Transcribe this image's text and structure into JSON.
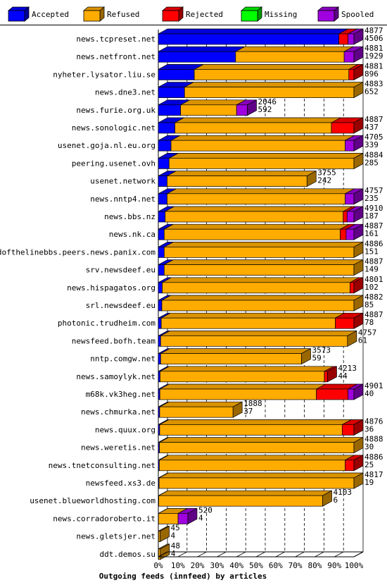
{
  "chart_data": {
    "type": "bar",
    "stacked": true,
    "orientation": "horizontal",
    "style": "3d",
    "xlabel": "Outgoing feeds (innfeed) by articles",
    "x_ticks": [
      "0%",
      "10%",
      "20%",
      "30%",
      "40%",
      "50%",
      "60%",
      "70%",
      "80%",
      "90%",
      "100%"
    ],
    "xlim": [
      0,
      100
    ],
    "grid": true,
    "legend_position": "top",
    "legend": [
      {
        "name": "Accepted",
        "color": "#0000ff"
      },
      {
        "name": "Refused",
        "color": "#ffac00"
      },
      {
        "name": "Rejected",
        "color": "#ff0000"
      },
      {
        "name": "Missing",
        "color": "#00ff00"
      },
      {
        "name": "Spooled",
        "color": "#a000e0"
      }
    ],
    "rows": [
      {
        "label": "news.tcpreset.net",
        "total": "4877",
        "accepted": "4506",
        "segments": [
          92.3,
          0,
          4.7,
          0,
          3.0
        ]
      },
      {
        "label": "news.netfront.net",
        "total": "4881",
        "accepted": "1929",
        "segments": [
          39.5,
          55.5,
          0,
          0,
          5.0
        ]
      },
      {
        "label": "nyheter.lysator.liu.se",
        "total": "4881",
        "accepted": "896",
        "segments": [
          18.4,
          79.0,
          2.6,
          0,
          0
        ]
      },
      {
        "label": "news.dne3.net",
        "total": "4883",
        "accepted": "652",
        "segments": [
          13.4,
          86.6,
          0,
          0,
          0
        ]
      },
      {
        "label": "news.furie.org.uk",
        "total": "2046",
        "accepted": "592",
        "segments": [
          11.4,
          28.6,
          0,
          0,
          5.5
        ]
      },
      {
        "label": "news.sonologic.net",
        "total": "4887",
        "accepted": "437",
        "segments": [
          8.5,
          80.0,
          11.5,
          0,
          0
        ]
      },
      {
        "label": "usenet.goja.nl.eu.org",
        "total": "4705",
        "accepted": "339",
        "segments": [
          6.5,
          89.0,
          0,
          0,
          4.5
        ]
      },
      {
        "label": "peering.usenet.ovh",
        "total": "4884",
        "accepted": "285",
        "segments": [
          5.5,
          94.5,
          0,
          0,
          0
        ]
      },
      {
        "label": "usenet.network",
        "total": "3755",
        "accepted": "242",
        "segments": [
          4.5,
          71.5,
          0,
          0,
          0
        ]
      },
      {
        "label": "news.nntp4.net",
        "total": "4757",
        "accepted": "235",
        "segments": [
          4.5,
          91.0,
          0,
          0,
          4.5
        ]
      },
      {
        "label": "news.bbs.nz",
        "total": "4910",
        "accepted": "187",
        "segments": [
          3.5,
          91.0,
          2.0,
          0,
          3.5
        ]
      },
      {
        "label": "news.nk.ca",
        "total": "4887",
        "accepted": "161",
        "segments": [
          3.0,
          90.0,
          3.0,
          0,
          4.0
        ]
      },
      {
        "label": "endofthelinebbs.peers.news.panix.com",
        "total": "4886",
        "accepted": "151",
        "segments": [
          3.0,
          97.0,
          0,
          0,
          0
        ]
      },
      {
        "label": "srv.newsdeef.eu",
        "total": "4887",
        "accepted": "149",
        "segments": [
          3.0,
          97.0,
          0,
          0,
          0
        ]
      },
      {
        "label": "news.hispagatos.org",
        "total": "4801",
        "accepted": "102",
        "segments": [
          2.0,
          96.0,
          2.0,
          0,
          0
        ]
      },
      {
        "label": "srl.newsdeef.eu",
        "total": "4882",
        "accepted": "85",
        "segments": [
          1.8,
          98.2,
          0,
          0,
          0
        ]
      },
      {
        "label": "photonic.trudheim.com",
        "total": "4887",
        "accepted": "78",
        "segments": [
          1.5,
          89.0,
          9.5,
          0,
          0
        ]
      },
      {
        "label": "newsfeed.bofh.team",
        "total": "4757",
        "accepted": "61",
        "segments": [
          1.2,
          95.5,
          0,
          0,
          0
        ]
      },
      {
        "label": "nntp.comgw.net",
        "total": "3573",
        "accepted": "59",
        "segments": [
          1.2,
          72.0,
          0,
          0,
          0
        ]
      },
      {
        "label": "news.samoylyk.net",
        "total": "4213",
        "accepted": "44",
        "segments": [
          0.9,
          84.0,
          1.6,
          0,
          0
        ]
      },
      {
        "label": "m68k.vk3heg.net",
        "total": "4901",
        "accepted": "40",
        "segments": [
          0.8,
          80.0,
          16.2,
          0,
          3.0
        ]
      },
      {
        "label": "news.chmurka.net",
        "total": "1888",
        "accepted": "37",
        "segments": [
          0.7,
          37.5,
          0,
          0,
          0
        ]
      },
      {
        "label": "news.quux.org",
        "total": "4876",
        "accepted": "36",
        "segments": [
          0.7,
          93.3,
          6.0,
          0,
          0
        ]
      },
      {
        "label": "news.weretis.net",
        "total": "4888",
        "accepted": "30",
        "segments": [
          0.6,
          99.4,
          0,
          0,
          0
        ]
      },
      {
        "label": "news.tnetconsulting.net",
        "total": "4886",
        "accepted": "25",
        "segments": [
          0.5,
          95.0,
          4.5,
          0,
          0
        ]
      },
      {
        "label": "newsfeed.xs3.de",
        "total": "4817",
        "accepted": "19",
        "segments": [
          0.4,
          99.6,
          0,
          0,
          0
        ]
      },
      {
        "label": "usenet.blueworldhosting.com",
        "total": "4103",
        "accepted": "6",
        "segments": [
          0.2,
          83.8,
          0,
          0,
          0
        ]
      },
      {
        "label": "news.corradoroberto.it",
        "total": "520",
        "accepted": "4",
        "segments": [
          0.1,
          10.0,
          0,
          0,
          5.0
        ]
      },
      {
        "label": "news.gletsjer.net",
        "total": "45",
        "accepted": "4",
        "segments": [
          0.1,
          0.8,
          0,
          0,
          0
        ]
      },
      {
        "label": "ddt.demos.su",
        "total": "48",
        "accepted": "4",
        "segments": [
          0.1,
          0.9,
          0,
          0,
          0
        ]
      }
    ]
  }
}
